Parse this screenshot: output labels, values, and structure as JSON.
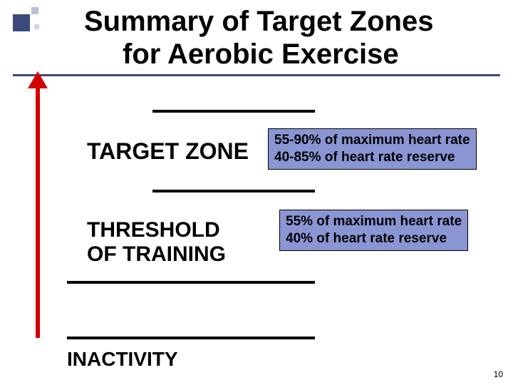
{
  "title": {
    "line1": "Summary of Target Zones",
    "line2": "for Aerobic Exercise"
  },
  "decorator": {
    "big_color": "#3b4a7a",
    "small_color": "#b8c0d8",
    "tiny_color": "#d0d6e6"
  },
  "title_underline_color": "#3b4a7a",
  "arrow_color": "#d40000",
  "divider_color": "#000000",
  "zones": {
    "target": {
      "label": "TARGET ZONE",
      "box": {
        "bg": "#8a95d4",
        "line1": "55-90% of maximum heart rate",
        "line2": "40-85% of heart rate reserve"
      }
    },
    "threshold": {
      "label_line1": "THRESHOLD",
      "label_line2": "OF TRAINING",
      "box": {
        "bg": "#8a95d4",
        "line1": "55% of maximum heart rate",
        "line2": "40% of heart rate reserve"
      }
    },
    "inactivity": {
      "label": "INACTIVITY"
    }
  },
  "page_number": "10"
}
